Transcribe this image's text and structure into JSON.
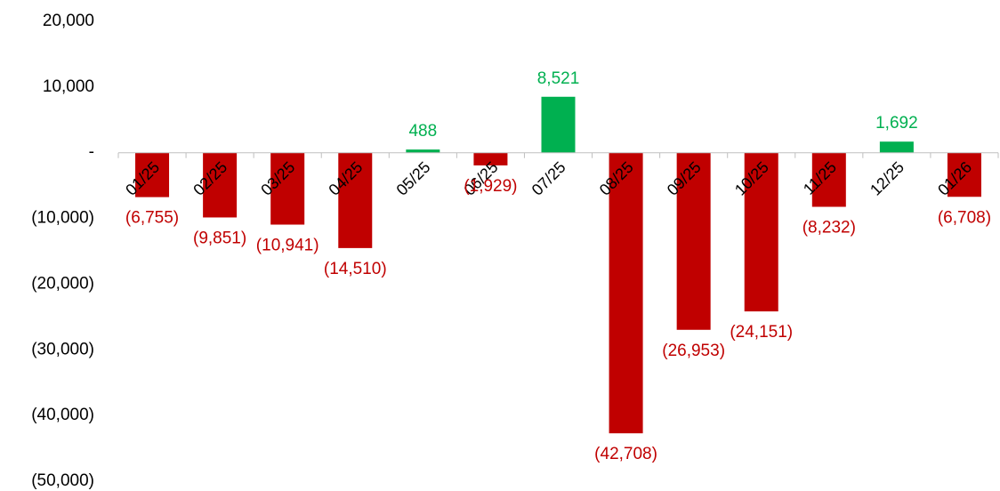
{
  "chart_data": {
    "type": "bar",
    "title": "",
    "xlabel": "",
    "ylabel": "",
    "ylim": [
      -50000,
      20000
    ],
    "y_ticks": [
      20000,
      10000,
      0,
      -10000,
      -20000,
      -30000,
      -40000,
      -50000
    ],
    "y_tick_labels": [
      "20,000",
      "10,000",
      "-",
      "(10,000)",
      "(20,000)",
      "(30,000)",
      "(40,000)",
      "(50,000)"
    ],
    "grid": false,
    "legend": "none",
    "categories": [
      "01/25",
      "02/25",
      "03/25",
      "04/25",
      "05/25",
      "06/25",
      "07/25",
      "08/25",
      "09/25",
      "10/25",
      "11/25",
      "12/25",
      "01/26"
    ],
    "values": [
      -6755,
      -9851,
      -10941,
      -14510,
      488,
      -1929,
      8521,
      -42708,
      -26953,
      -24151,
      -8232,
      1692,
      -6708
    ],
    "value_labels": [
      "(6,755)",
      "(9,851)",
      "(10,941)",
      "(14,510)",
      "488",
      "(1,929)",
      "8,521",
      "(42,708)",
      "(26,953)",
      "(24,151)",
      "(8,232)",
      "1,692",
      "(6,708)"
    ],
    "colors": {
      "positive": "#00b050",
      "negative": "#c00000",
      "axis": "#bfbfbf",
      "text": "#000000"
    }
  }
}
